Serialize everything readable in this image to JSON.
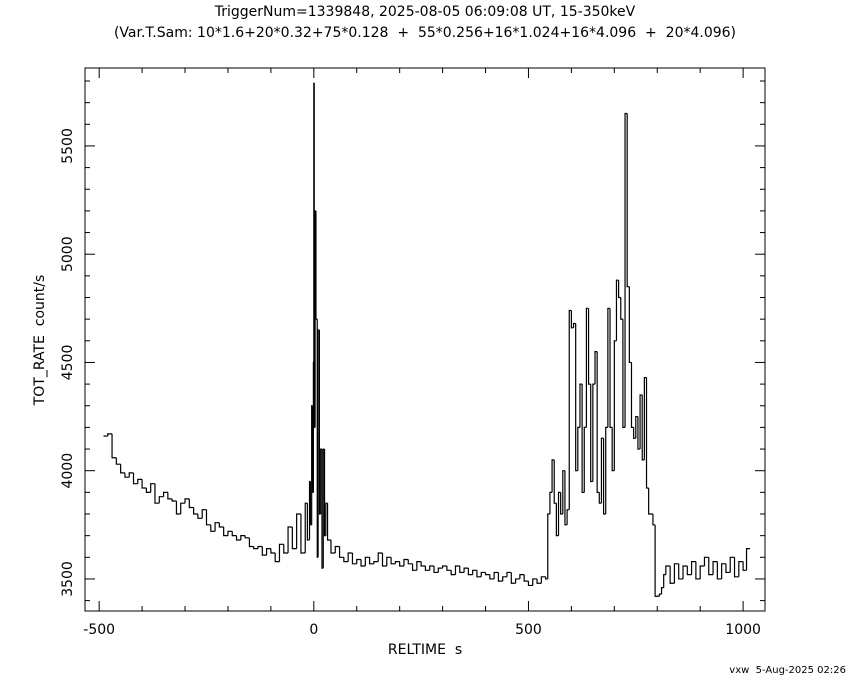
{
  "chart_data": {
    "type": "step",
    "title": "TriggerNum=1339848, 2025-08-05 06:09:08 UT, 15-350keV",
    "subtitle": "(Var.T.Sam: 10*1.6+20*0.32+75*0.128  +  55*0.256+16*1.024+16*4.096  +  20*4.096)",
    "x_label": "RELTIME  s",
    "y_label": "TOT_RATE  count/s",
    "footer": "vxw  5-Aug-2025 02:26",
    "xlim": [
      -533,
      1051
    ],
    "ylim": [
      3352,
      5860
    ],
    "xticks": [
      -500,
      0,
      500,
      1000
    ],
    "yticks": [
      3500,
      4000,
      4500,
      5000,
      5500
    ],
    "xminorticks": [
      -400,
      -300,
      -200,
      -100,
      100,
      200,
      300,
      400,
      600,
      700,
      800,
      900
    ],
    "yminorticks": [
      3400,
      3600,
      3700,
      3800,
      3900,
      4100,
      4200,
      4300,
      4400,
      4600,
      4700,
      4800,
      4900,
      5100,
      5200,
      5300,
      5400,
      5600,
      5700,
      5800
    ],
    "series": [
      {
        "color": "#000000",
        "x": [
          -490,
          -480,
          -470,
          -460,
          -450,
          -440,
          -430,
          -420,
          -410,
          -400,
          -390,
          -380,
          -370,
          -360,
          -350,
          -340,
          -330,
          -320,
          -310,
          -300,
          -290,
          -280,
          -270,
          -260,
          -250,
          -240,
          -230,
          -220,
          -210,
          -200,
          -190,
          -180,
          -170,
          -160,
          -150,
          -140,
          -130,
          -120,
          -110,
          -100,
          -90,
          -80,
          -70,
          -60,
          -50,
          -40,
          -30,
          -20,
          -15,
          -10,
          -8,
          -5,
          -3,
          -1,
          0,
          1,
          3,
          5,
          8,
          10,
          13,
          16,
          19,
          22,
          25,
          28,
          32,
          40,
          50,
          60,
          70,
          80,
          90,
          100,
          110,
          120,
          130,
          140,
          150,
          160,
          170,
          180,
          190,
          200,
          210,
          220,
          230,
          240,
          250,
          260,
          270,
          280,
          290,
          300,
          310,
          320,
          330,
          340,
          350,
          360,
          370,
          380,
          390,
          400,
          410,
          420,
          430,
          440,
          450,
          460,
          470,
          480,
          490,
          500,
          510,
          520,
          530,
          540,
          545,
          550,
          555,
          560,
          565,
          570,
          575,
          580,
          585,
          590,
          595,
          600,
          605,
          610,
          615,
          620,
          625,
          630,
          635,
          640,
          645,
          650,
          655,
          660,
          665,
          670,
          675,
          680,
          685,
          690,
          695,
          700,
          705,
          710,
          715,
          720,
          725,
          730,
          735,
          740,
          745,
          750,
          755,
          760,
          765,
          770,
          775,
          780,
          790,
          795,
          805,
          810,
          815,
          820,
          830,
          840,
          850,
          860,
          870,
          880,
          890,
          900,
          910,
          920,
          930,
          940,
          950,
          960,
          970,
          980,
          990,
          1000,
          1008
        ],
        "values": [
          4160,
          4170,
          4060,
          4030,
          3990,
          3970,
          3990,
          3940,
          3960,
          3920,
          3900,
          3940,
          3850,
          3880,
          3900,
          3870,
          3860,
          3800,
          3850,
          3870,
          3830,
          3800,
          3780,
          3820,
          3750,
          3720,
          3760,
          3740,
          3700,
          3720,
          3700,
          3680,
          3700,
          3690,
          3650,
          3640,
          3650,
          3610,
          3640,
          3620,
          3580,
          3660,
          3620,
          3740,
          3640,
          3800,
          3620,
          3850,
          3680,
          3950,
          3750,
          4300,
          3900,
          4500,
          5790,
          4200,
          5200,
          4700,
          3600,
          4650,
          3800,
          4100,
          3550,
          4100,
          3700,
          3850,
          3680,
          3620,
          3650,
          3600,
          3580,
          3620,
          3570,
          3590,
          3560,
          3600,
          3570,
          3580,
          3620,
          3560,
          3600,
          3570,
          3580,
          3560,
          3590,
          3570,
          3540,
          3580,
          3560,
          3540,
          3560,
          3530,
          3550,
          3560,
          3540,
          3520,
          3560,
          3530,
          3550,
          3520,
          3540,
          3510,
          3530,
          3520,
          3500,
          3530,
          3490,
          3510,
          3530,
          3480,
          3500,
          3520,
          3490,
          3470,
          3500,
          3480,
          3510,
          3500,
          3800,
          3900,
          4050,
          3850,
          3700,
          3900,
          3800,
          4000,
          3750,
          3820,
          4740,
          4660,
          4680,
          4000,
          4200,
          4400,
          3900,
          4200,
          4750,
          4400,
          3950,
          4400,
          4550,
          3900,
          3850,
          4150,
          3800,
          4200,
          4750,
          4200,
          4000,
          4600,
          4880,
          4800,
          4700,
          4200,
          5650,
          4850,
          4500,
          4200,
          4150,
          4250,
          4100,
          4350,
          4050,
          4430,
          3920,
          3800,
          3750,
          3420,
          3430,
          3460,
          3520,
          3560,
          3480,
          3570,
          3500,
          3560,
          3520,
          3580,
          3500,
          3560,
          3600,
          3520,
          3580,
          3500,
          3570,
          3530,
          3600,
          3510,
          3580,
          3540,
          3640
        ]
      }
    ]
  }
}
